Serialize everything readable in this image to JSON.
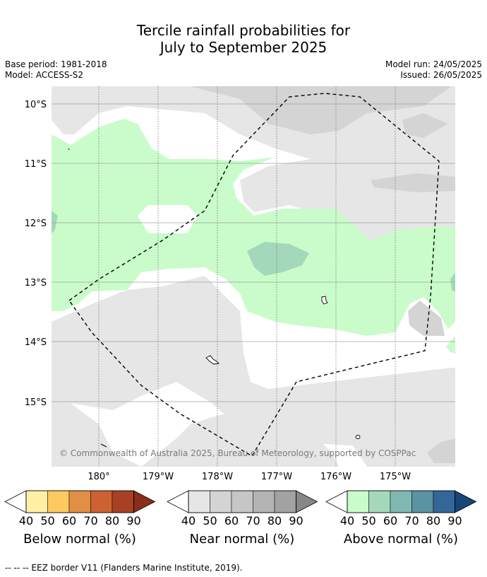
{
  "title_line1": "Tercile rainfall probabilities for",
  "title_line2": "July to September 2025",
  "meta": {
    "base_period": "Base period: 1981-2018",
    "model": "Model: ACCESS-S2",
    "model_run": "Model run: 24/05/2025",
    "issued": "Issued: 26/05/2025"
  },
  "map": {
    "lat_labels": [
      "10°S",
      "11°S",
      "12°S",
      "13°S",
      "14°S",
      "15°S"
    ],
    "lon_labels": [
      "180°",
      "179°W",
      "178°W",
      "177°W",
      "176°W",
      "175°W"
    ],
    "copyright": "© Commonwealth of Australia 2025, Bureau of Meteorology, supported by COSPPac"
  },
  "colorbars": [
    {
      "title": "Below normal (%)",
      "ticks": [
        "40",
        "50",
        "60",
        "70",
        "80",
        "90"
      ],
      "colors": [
        "#fff0a5",
        "#fdc961",
        "#e28f45",
        "#cd6131",
        "#a84124",
        "#8a2e1a"
      ]
    },
    {
      "title": "Near normal (%)",
      "ticks": [
        "40",
        "50",
        "60",
        "70",
        "80",
        "90"
      ],
      "colors": [
        "#e6e6e6",
        "#d4d4d4",
        "#c6c6c6",
        "#b4b4b4",
        "#a2a2a2",
        "#878787"
      ]
    },
    {
      "title": "Above normal (%)",
      "ticks": [
        "40",
        "50",
        "60",
        "70",
        "80",
        "90"
      ],
      "colors": [
        "#c9fcca",
        "#a4d8bb",
        "#7fb8b2",
        "#5a93a2",
        "#336699",
        "#17467a"
      ]
    }
  ],
  "footer": "--  --  -- EEZ border V11 (Flanders Marine Institute, 2019)."
}
